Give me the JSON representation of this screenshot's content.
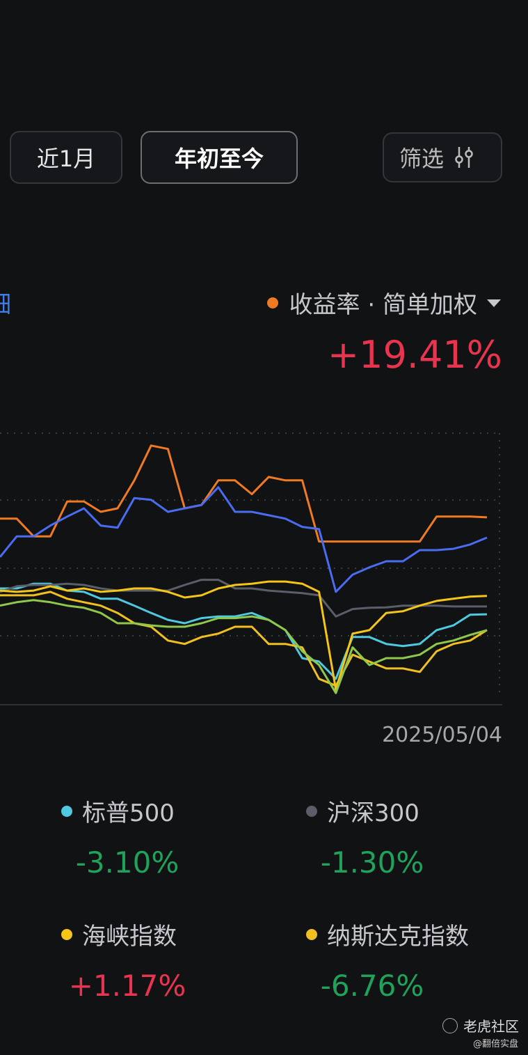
{
  "tabs": [
    "近1月",
    "年初至今"
  ],
  "filter": "筛选",
  "side_label": "细",
  "summary_value": "+19.41%",
  "watermark": {
    "brand": "老虎社区",
    "user": "@翻倍实盘"
  },
  "chart_data": {
    "type": "line",
    "categories": [
      null,
      null,
      null,
      null,
      null,
      null,
      null,
      null,
      null,
      null,
      null,
      null,
      null,
      null,
      null,
      null,
      null,
      null,
      null,
      null,
      null,
      null,
      null,
      null,
      null,
      null,
      null,
      null,
      null,
      "2025/05/04"
    ],
    "ylim": [
      -23.8,
      39.3
    ],
    "series": [
      {
        "name": "收益率 · 简单加权",
        "color": "#f07a22",
        "values": [
          19.1,
          19.1,
          15.0,
          15.0,
          23.1,
          23.1,
          20.7,
          21.5,
          28.0,
          36.1,
          35.3,
          21.5,
          22.3,
          28.0,
          28.0,
          24.8,
          28.8,
          28.0,
          28.0,
          13.8,
          13.8,
          13.8,
          13.8,
          13.8,
          13.8,
          13.8,
          19.6,
          19.6,
          19.6,
          19.41
        ]
      },
      {
        "color": "#4a6cf0",
        "values": [
          10.2,
          15.0,
          15.0,
          17.5,
          19.6,
          21.5,
          17.5,
          17.0,
          23.9,
          23.5,
          20.7,
          21.5,
          22.3,
          26.4,
          20.7,
          20.7,
          19.9,
          19.1,
          17.2,
          16.7,
          2.1,
          6.1,
          7.8,
          9.2,
          9.2,
          11.8,
          11.8,
          12.1,
          13.1,
          14.7
        ]
      },
      {
        "name": "标普500",
        "change": "-3.10%",
        "color": "#4fc9e0",
        "values": [
          2.9,
          2.9,
          4.0,
          4.0,
          2.4,
          2.1,
          0.5,
          0.5,
          -1.1,
          -2.8,
          -4.4,
          -5.2,
          -4.0,
          -3.6,
          -3.6,
          -2.8,
          -4.4,
          -6.8,
          -13.3,
          -14.1,
          -18.1,
          -8.4,
          -8.4,
          -10.0,
          -10.5,
          -10.0,
          -6.8,
          -5.7,
          -3.2,
          -3.1
        ]
      },
      {
        "name": "沪深300",
        "change": "-1.30%",
        "color": "#5a5e68",
        "values": [
          2.1,
          3.4,
          3.7,
          3.7,
          4.0,
          3.7,
          2.9,
          2.4,
          2.4,
          2.4,
          2.4,
          3.7,
          4.9,
          4.9,
          2.9,
          2.9,
          2.4,
          2.1,
          1.8,
          1.3,
          -3.6,
          -1.9,
          -1.6,
          -1.5,
          -1.1,
          -1.1,
          -1.1,
          -1.3,
          -1.3,
          -1.3
        ]
      },
      {
        "name": "海峡指数",
        "change": "+1.17%",
        "color": "#f5c518",
        "values": [
          2.4,
          2.1,
          2.4,
          3.4,
          2.4,
          2.9,
          2.1,
          2.4,
          2.9,
          2.9,
          2.1,
          0.8,
          1.3,
          2.9,
          3.7,
          4.0,
          4.5,
          4.5,
          4.0,
          2.1,
          -20.6,
          -7.6,
          -6.8,
          -2.8,
          -2.4,
          -1.1,
          0,
          0.5,
          1.0,
          1.17
        ]
      },
      {
        "name": "纳斯达克指数",
        "change": "-6.76%",
        "color": "#f0c020",
        "values": [
          1.3,
          1.3,
          1.3,
          2.1,
          0.5,
          -0.3,
          -1.1,
          -2.8,
          -5.2,
          -6.0,
          -9.2,
          -10.0,
          -8.4,
          -7.6,
          -6.0,
          -6.0,
          -10.0,
          -10.0,
          -10.8,
          -18.1,
          -19.7,
          -12.5,
          -14.1,
          -15.7,
          -15.7,
          -16.5,
          -11.7,
          -10.0,
          -9.2,
          -6.76
        ]
      },
      {
        "color": "#8fc84a",
        "values": [
          -1.1,
          -0.3,
          0.2,
          -0.3,
          -1.1,
          -1.6,
          -2.8,
          -5.2,
          -5.2,
          -5.7,
          -6.0,
          -6.0,
          -5.2,
          -4.0,
          -4.0,
          -3.6,
          -4.4,
          -6.8,
          -11.7,
          -14.9,
          -21.4,
          -10.8,
          -14.9,
          -13.3,
          -13.3,
          -12.5,
          -10.0,
          -9.2,
          -7.9,
          -6.8
        ]
      }
    ]
  }
}
